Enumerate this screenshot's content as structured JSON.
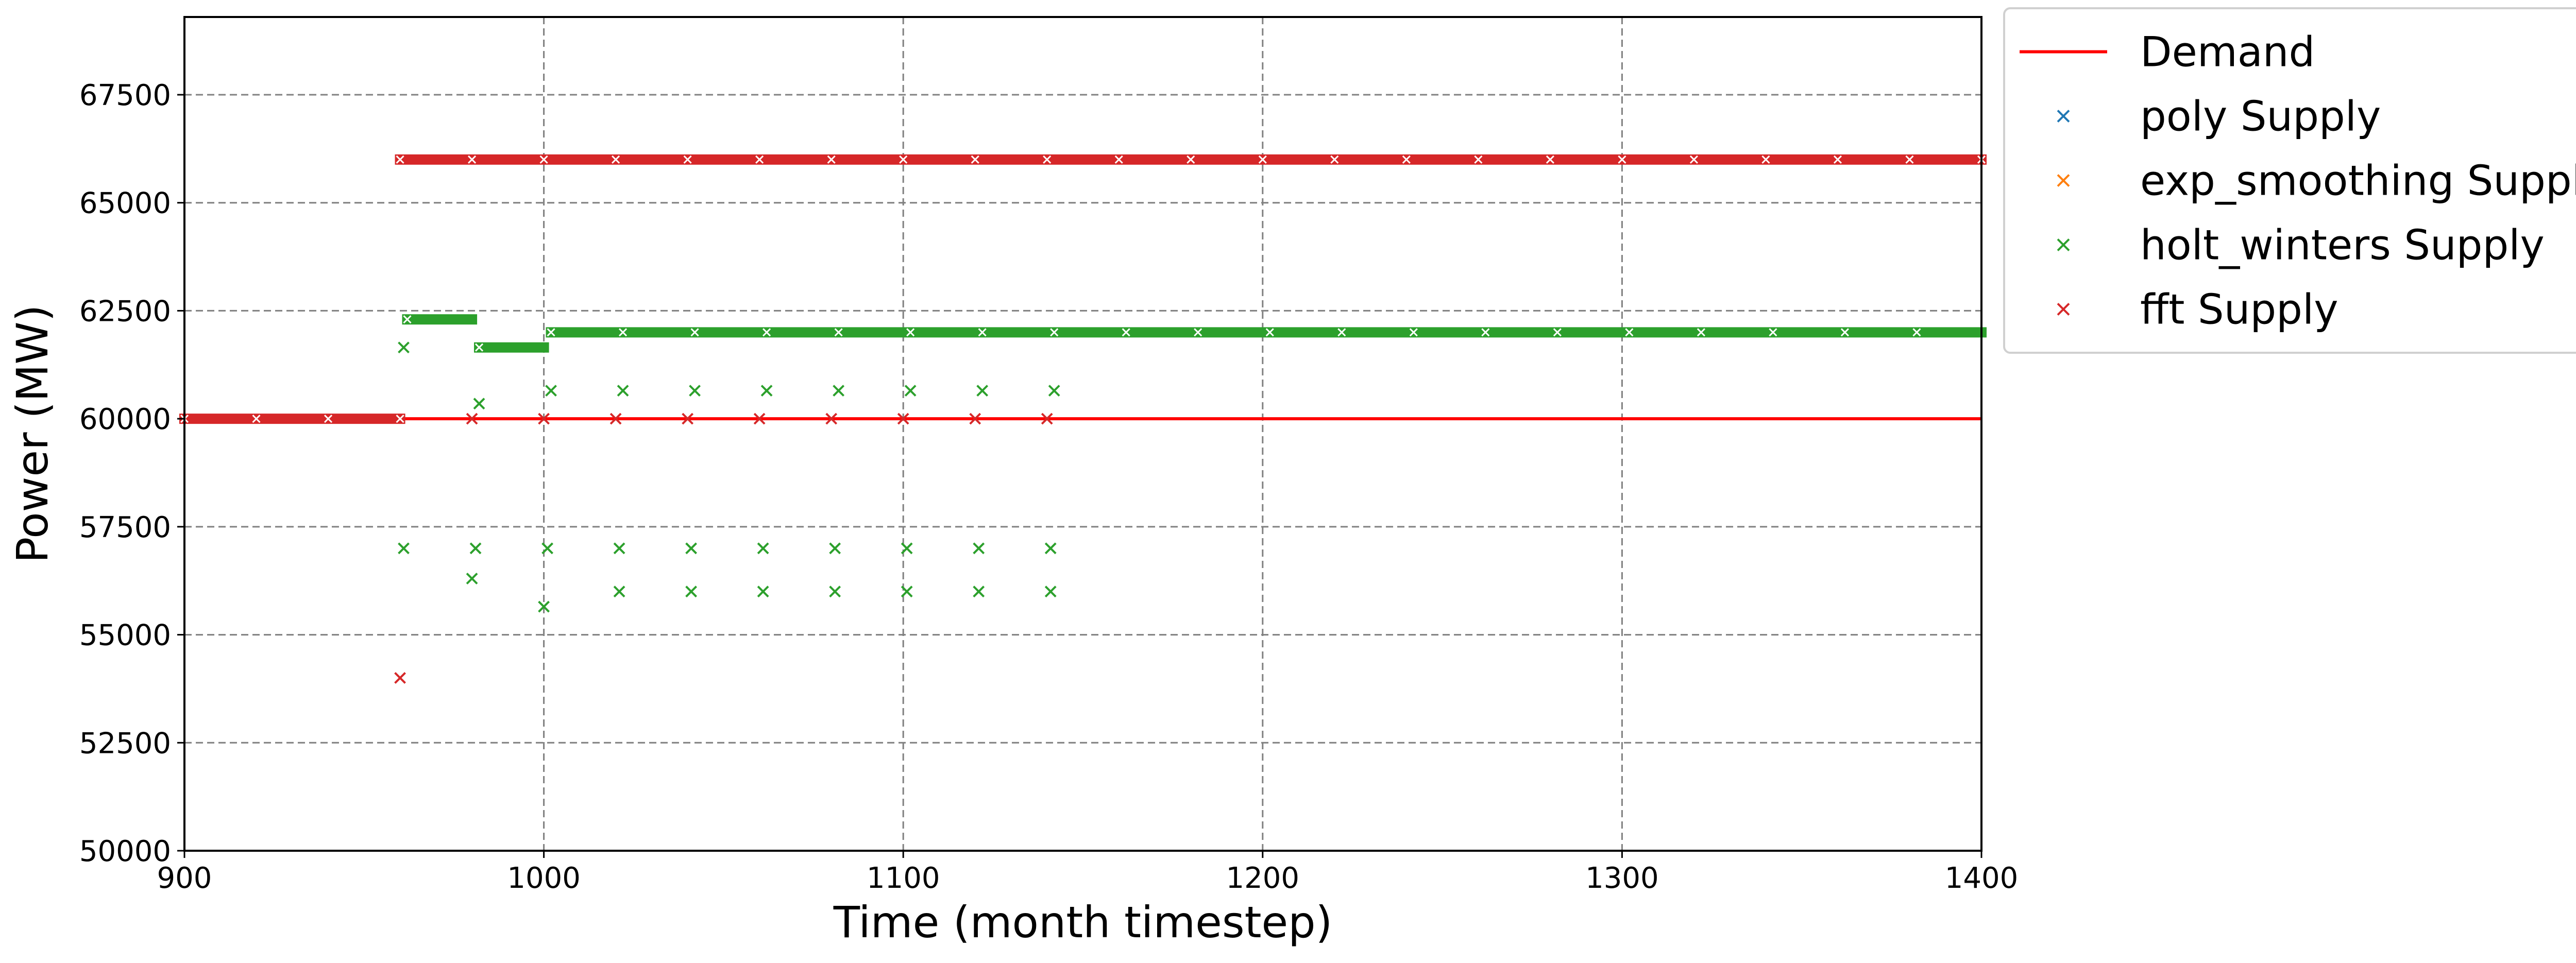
{
  "chart_data": {
    "type": "scatter",
    "title": "",
    "xlabel": "Time (month timestep)",
    "ylabel": "Power (MW)",
    "xlim": [
      900,
      1400
    ],
    "ylim": [
      50000,
      69300
    ],
    "xticks": [
      900,
      1000,
      1100,
      1200,
      1300,
      1400
    ],
    "yticks": [
      50000,
      52500,
      55000,
      57500,
      60000,
      62500,
      65000,
      67500
    ],
    "grid": true,
    "legend_position": "outside-right-top",
    "series": [
      {
        "name": "Demand",
        "kind": "line",
        "color": "#ff0000",
        "points": [
          [
            900,
            60000
          ],
          [
            1400,
            60000
          ]
        ]
      },
      {
        "name": "poly Supply",
        "kind": "marker",
        "marker": "x",
        "color": "#1f77b4",
        "points": []
      },
      {
        "name": "exp_smoothing Supply",
        "kind": "marker",
        "marker": "x",
        "color": "#ff7f0e",
        "points": []
      },
      {
        "name": "holt_winters Supply",
        "kind": "marker",
        "marker": "x",
        "color": "#2ca02c",
        "dense_segments": [
          {
            "x_start": 962,
            "x_end": 980,
            "y": 62300
          },
          {
            "x_start": 982,
            "x_end": 1000,
            "y": 61650
          },
          {
            "x_start": 1002,
            "x_end": 1400,
            "y": 62000
          }
        ],
        "points": [
          [
            961,
            61650
          ],
          [
            961,
            57000
          ],
          [
            980,
            56300
          ],
          [
            981,
            57000
          ],
          [
            982,
            60350
          ],
          [
            1000,
            55650
          ],
          [
            1001,
            57000
          ],
          [
            1002,
            60650
          ],
          [
            1021,
            56000
          ],
          [
            1021,
            57000
          ],
          [
            1022,
            60650
          ],
          [
            1041,
            56000
          ],
          [
            1041,
            57000
          ],
          [
            1042,
            60650
          ],
          [
            1061,
            56000
          ],
          [
            1061,
            57000
          ],
          [
            1062,
            60650
          ],
          [
            1081,
            56000
          ],
          [
            1081,
            57000
          ],
          [
            1082,
            60650
          ],
          [
            1101,
            56000
          ],
          [
            1101,
            57000
          ],
          [
            1102,
            60650
          ],
          [
            1121,
            56000
          ],
          [
            1121,
            57000
          ],
          [
            1122,
            60650
          ],
          [
            1141,
            56000
          ],
          [
            1141,
            57000
          ],
          [
            1142,
            60650
          ]
        ]
      },
      {
        "name": "fft Supply",
        "kind": "marker",
        "marker": "x",
        "color": "#d62728",
        "dense_segments": [
          {
            "x_start": 900,
            "x_end": 960,
            "y": 60000
          },
          {
            "x_start": 960,
            "x_end": 1400,
            "y": 66000
          }
        ],
        "points": [
          [
            960,
            54000
          ],
          [
            980,
            60000
          ],
          [
            1000,
            60000
          ],
          [
            1020,
            60000
          ],
          [
            1040,
            60000
          ],
          [
            1060,
            60000
          ],
          [
            1080,
            60000
          ],
          [
            1100,
            60000
          ],
          [
            1120,
            60000
          ],
          [
            1140,
            60000
          ]
        ]
      }
    ]
  }
}
